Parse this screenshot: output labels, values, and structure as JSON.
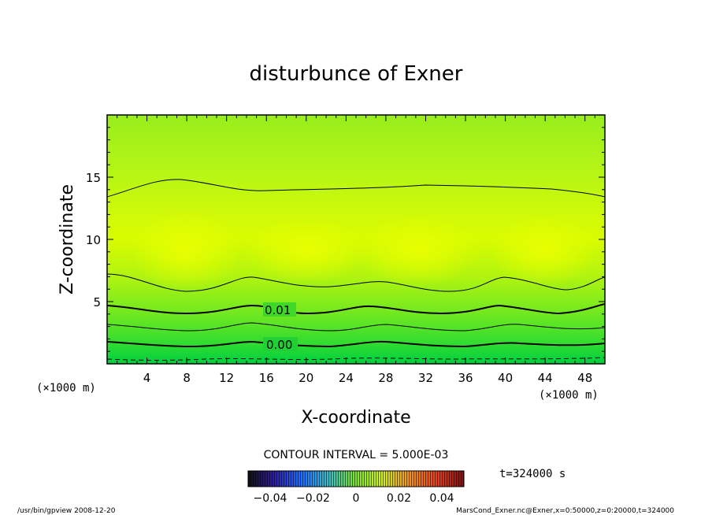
{
  "chart_data": {
    "type": "contour",
    "title": "disturbunce of Exner",
    "xlabel": "X-coordinate",
    "ylabel": "Z-coordinate",
    "xunit": "(×1000 m)",
    "yunit": "(×1000 m)",
    "xlim": [
      0,
      50
    ],
    "ylim": [
      0,
      20
    ],
    "xticks": [
      4,
      8,
      12,
      16,
      20,
      24,
      28,
      32,
      36,
      40,
      44,
      48
    ],
    "yticks": [
      5,
      10,
      15
    ],
    "contour_labels": [
      {
        "text": "0.01",
        "x": 17.5,
        "z": 4.3
      },
      {
        "text": "0.00",
        "x": 17.5,
        "z": 1.5
      }
    ],
    "contour_interval_label": "CONTOUR INTERVAL = 5.000E-03",
    "colorbar_ticks": [
      "−0.04",
      "−0.02",
      "0",
      "0.02",
      "0.04"
    ],
    "time_label": "t=324000 s",
    "footer_left": "/usr/bin/gpview   2008-12-20",
    "footer_right": "MarsCond_Exner.nc@Exner,x=0:50000,z=0:20000,t=324000",
    "colors": {
      "low": "#00c840",
      "mid": "#7ee81c",
      "high": "#dcff00",
      "top": "#a4f41c"
    }
  }
}
